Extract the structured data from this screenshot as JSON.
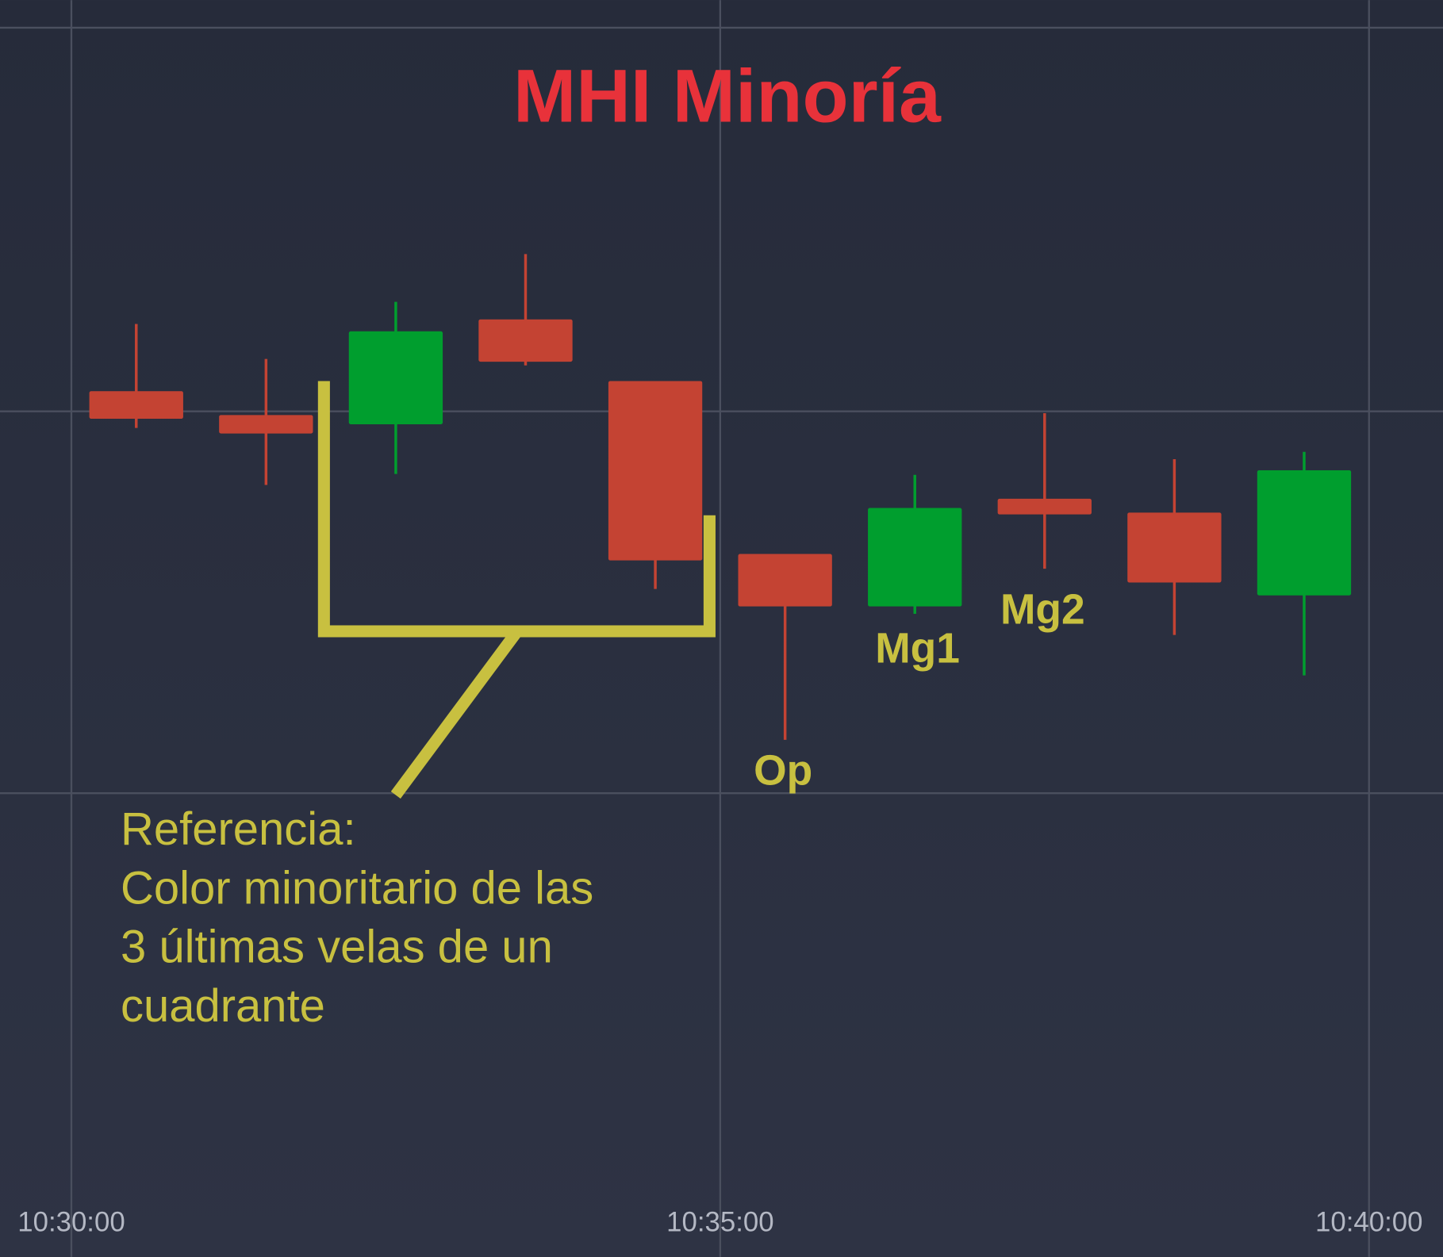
{
  "chart_data": {
    "type": "candlestick",
    "title": "MHI Minoría",
    "x": [
      0.5,
      1.5,
      2.5,
      3.5,
      4.5,
      5.5,
      6.5,
      7.5,
      8.5,
      9.5
    ],
    "open": [
      87.5,
      84.9,
      83.9,
      95.3,
      88.6,
      69.8,
      64.1,
      75.8,
      74.3,
      65.3
    ],
    "high": [
      94.8,
      91.0,
      97.2,
      102.4,
      88.6,
      69.8,
      78.4,
      85.1,
      80.1,
      80.9
    ],
    "low": [
      83.5,
      77.3,
      78.5,
      90.3,
      66.0,
      49.6,
      63.3,
      68.2,
      61.0,
      56.6
    ],
    "close": [
      84.5,
      82.9,
      94.0,
      90.7,
      69.1,
      64.1,
      74.8,
      74.1,
      66.7,
      78.9
    ],
    "up_color": "#009e2e",
    "down_color": "#c44333",
    "xlim": [
      -0.55,
      10.57
    ],
    "xticks": [
      {
        "value": 0,
        "label": "10:30:00"
      },
      {
        "value": 5,
        "label": "10:35:00"
      },
      {
        "value": 10,
        "label": "10:40:00"
      }
    ],
    "ylim": [
      0,
      130
    ],
    "yticks": [
      {
        "value": 127,
        "label": ""
      },
      {
        "value": 85.3,
        "label": ""
      },
      {
        "value": 43.8,
        "label": ""
      }
    ],
    "grid": true,
    "annotations": {
      "op": "Op",
      "mg1": "Mg1",
      "mg2": "Mg2",
      "reference": [
        "Referencia:",
        "Color minoritario de las",
        "3 últimas velas de un",
        "cuadrante"
      ]
    }
  }
}
